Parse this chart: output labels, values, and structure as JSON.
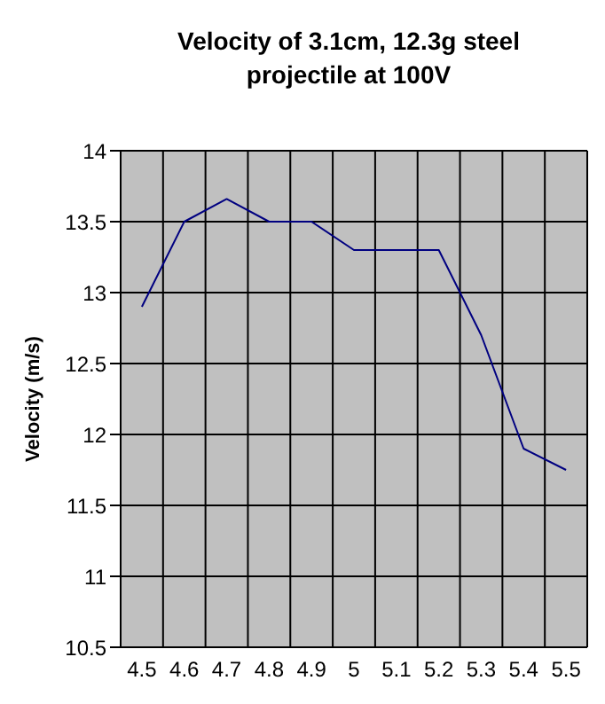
{
  "chart_data": {
    "type": "line",
    "title": "Velocity of 3.1cm, 12.3g steel projectile at 100V",
    "ylabel": "Velocity (m/s)",
    "categories": [
      "4.5",
      "4.6",
      "4.7",
      "4.8",
      "4.9",
      "5",
      "5.1",
      "5.2",
      "5.3",
      "5.4",
      "5.5"
    ],
    "series": [
      {
        "color": "#000080",
        "values": [
          12.9,
          13.5,
          13.66,
          13.5,
          13.5,
          13.3,
          13.3,
          13.3,
          12.7,
          11.9,
          11.75
        ]
      }
    ],
    "ylim": [
      10.5,
      14
    ],
    "yticks": [
      10.5,
      11,
      11.5,
      12,
      12.5,
      13,
      13.5,
      14
    ],
    "grid": true,
    "legend": false,
    "marker": "none",
    "line_style": "solid"
  }
}
